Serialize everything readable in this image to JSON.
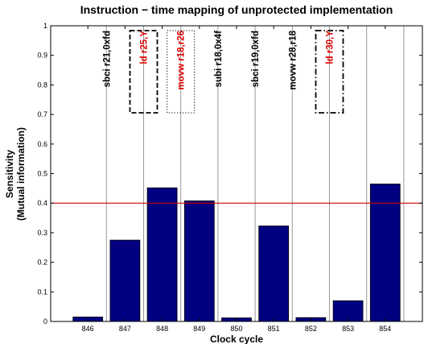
{
  "chart_data": {
    "type": "bar",
    "title": "Instruction − time mapping of unprotected implementation",
    "xlabel": "Clock cycle",
    "ylabel_lines": [
      "Sensitivity",
      "(Mutual information)"
    ],
    "categories": [
      "846",
      "847",
      "848",
      "849",
      "850",
      "851",
      "852",
      "853",
      "854"
    ],
    "values": [
      0.015,
      0.275,
      0.452,
      0.408,
      0.012,
      0.323,
      0.013,
      0.07,
      0.465
    ],
    "ylim": [
      0,
      1
    ],
    "yticks": [
      "0",
      "0.1",
      "0.2",
      "0.3",
      "0.4",
      "0.5",
      "0.6",
      "0.7",
      "0.8",
      "0.9",
      "1"
    ],
    "threshold": 0.4,
    "bar_color": "#000080",
    "threshold_color": "#cc0000",
    "separator_color": "#999999",
    "instructions": [
      {
        "text": "sbci r21,0xfd",
        "color": "#000000",
        "box": "none"
      },
      {
        "text": "ld r25,Y",
        "color": "#e00000",
        "box": "dashed"
      },
      {
        "text": "movw r18,r26",
        "color": "#e00000",
        "box": "dotted"
      },
      {
        "text": "subi r18,0x4f",
        "color": "#000000",
        "box": "none"
      },
      {
        "text": "sbci r19,0xfd",
        "color": "#000000",
        "box": "none"
      },
      {
        "text": "movw r28,r18",
        "color": "#000000",
        "box": "none"
      },
      {
        "text": "ld r30,Y",
        "color": "#e00000",
        "box": "dashdot"
      }
    ]
  }
}
